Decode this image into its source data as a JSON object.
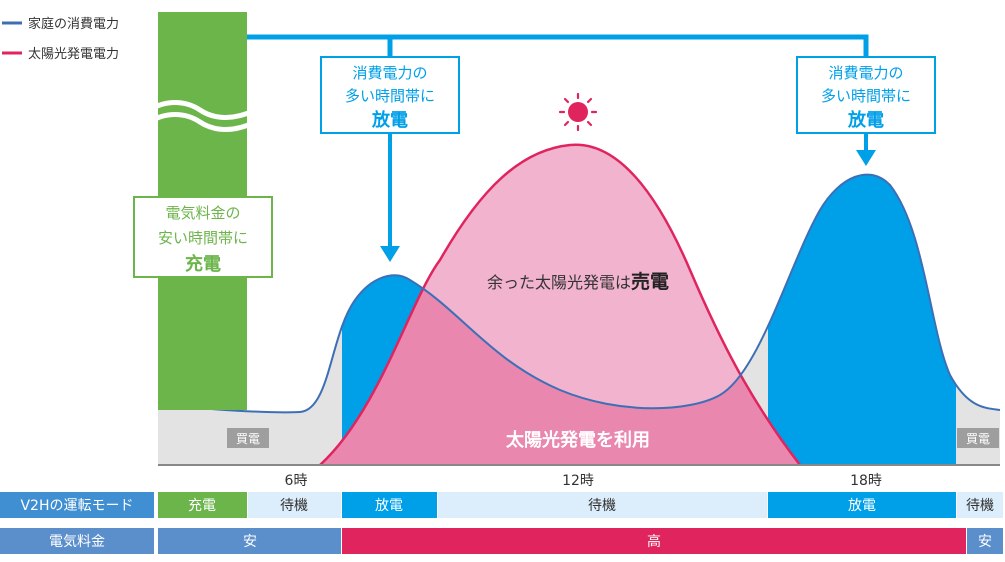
{
  "legend": {
    "household": {
      "label": "家庭の消費電力",
      "color": "#3d6fb6"
    },
    "solar": {
      "label": "太陽光発電電力",
      "color": "#e0245e"
    }
  },
  "charge_box": {
    "line1": "電気料金の",
    "line2": "安い時間帯に",
    "line3": "充電"
  },
  "discharge_box_left": {
    "line1": "消費電力の",
    "line2": "多い時間帯に",
    "line3": "放電"
  },
  "discharge_box_right": {
    "line1": "消費電力の",
    "line2": "多い時間帯に",
    "line3": "放電"
  },
  "surplus_label": {
    "main": "余った太陽光発電は",
    "bold": "売電"
  },
  "solar_use_label": "太陽光発電を利用",
  "buy_label_left": "買電",
  "buy_label_right": "買電",
  "time_ticks": [
    "6時",
    "12時",
    "18時"
  ],
  "mode_row": {
    "header": "V2Hの運転モード",
    "cells": [
      "充電",
      "待機",
      "放電",
      "待機",
      "放電",
      "待機"
    ]
  },
  "price_row": {
    "header": "電気料金",
    "cells": [
      "安",
      "高",
      "安"
    ]
  },
  "colors": {
    "green": "#6cb54b",
    "blue": "#00a0e9",
    "pink_light": "#f2b3ce",
    "pink_mid": "#ea87ae",
    "pink_line": "#e0245e",
    "gray": "#e3e3e3",
    "mode_header": "#3f8fd2",
    "mode_light": "#dceefb",
    "price_header": "#5b8fcc",
    "price_high": "#e0245e"
  }
}
